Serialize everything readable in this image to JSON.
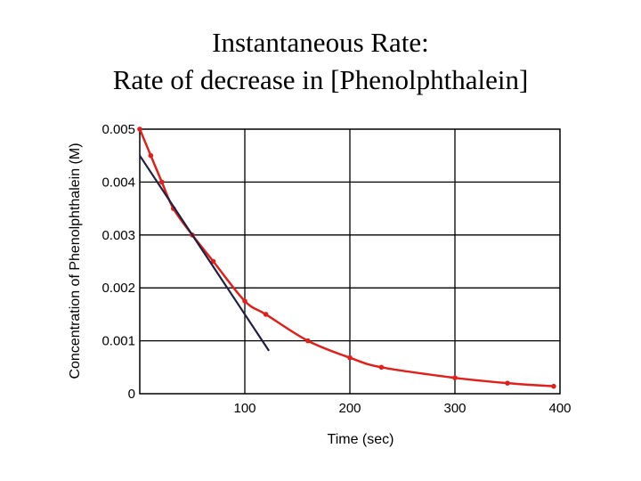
{
  "header": {
    "title": "Instantaneous Rate:",
    "subtitle": "Rate of decrease in [Phenolphthalein]"
  },
  "colors": {
    "curve": "#e0201a",
    "tangent": "#202040",
    "marker": "#e0201a",
    "grid": "#000000"
  },
  "chart_data": {
    "type": "line",
    "xlabel": "Time (sec)",
    "ylabel": "Concentration of Phenolphthalein (M)",
    "xlim": [
      0,
      400
    ],
    "ylim": [
      0,
      0.005
    ],
    "xticks": [
      {
        "value": 100,
        "label": "100"
      },
      {
        "value": 200,
        "label": "200"
      },
      {
        "value": 300,
        "label": "300"
      },
      {
        "value": 400,
        "label": "400"
      }
    ],
    "yticks": [
      {
        "value": 0,
        "label": "0"
      },
      {
        "value": 0.001,
        "label": "0.001"
      },
      {
        "value": 0.002,
        "label": "0.002"
      },
      {
        "value": 0.003,
        "label": "0.003"
      },
      {
        "value": 0.004,
        "label": "0.004"
      },
      {
        "value": 0.005,
        "label": "0.005"
      }
    ],
    "grid": true,
    "series": [
      {
        "kind": "curve",
        "x": [
          0,
          10.5,
          21,
          32,
          50,
          70,
          100,
          120,
          160,
          200,
          230,
          300,
          350,
          394
        ],
        "y": [
          0.005,
          0.0045,
          0.004,
          0.0035,
          0.003,
          0.0025,
          0.00175,
          0.0015,
          0.001,
          0.00068,
          0.0005,
          0.0003,
          0.0002,
          0.00014
        ]
      },
      {
        "kind": "tangent",
        "x": [
          0,
          123
        ],
        "y": [
          0.0045,
          0.00081
        ]
      }
    ]
  }
}
